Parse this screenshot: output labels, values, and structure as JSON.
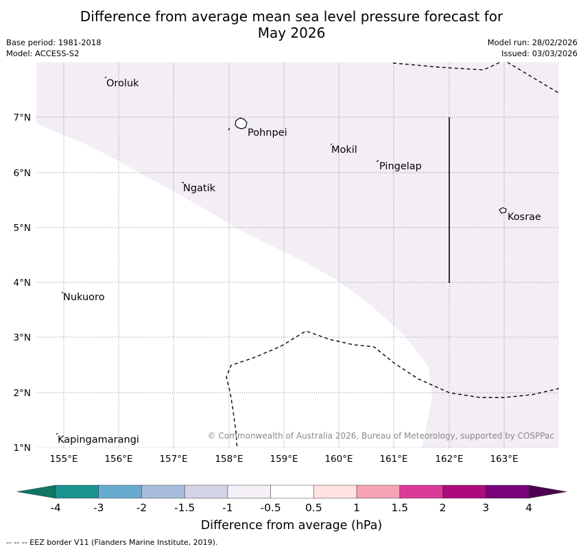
{
  "title": {
    "line1": "Difference from average mean sea level pressure forecast for",
    "line2": "May 2026"
  },
  "meta": {
    "base_period": "Base period: 1981-2018",
    "model": "Model: ACCESS-S2",
    "model_run": "Model run: 28/02/2026",
    "issued": "Issued: 03/03/2026"
  },
  "map": {
    "lon_labels": [
      "155°E",
      "156°E",
      "157°E",
      "158°E",
      "159°E",
      "160°E",
      "161°E",
      "162°E",
      "163°E"
    ],
    "lat_labels": [
      "7°N",
      "6°N",
      "5°N",
      "4°N",
      "3°N",
      "2°N",
      "1°N"
    ],
    "places": [
      "Oroluk",
      "Pohnpei",
      "Mokil",
      "Pingelap",
      "Ngatik",
      "Kosrae",
      "Nukuoro",
      "Kapingamarangi"
    ],
    "copyright": "© Commonwealth of Australia 2026, Bureau of Meteorology, supported by COSPPac",
    "shading_color": "#f3eef6"
  },
  "colorbar": {
    "tick_labels": [
      "-4",
      "-3",
      "-2",
      "-1.5",
      "-1",
      "-0.5",
      "0.5",
      "1",
      "1.5",
      "2",
      "3",
      "4"
    ],
    "colors": [
      "#1a948f",
      "#68abd0",
      "#a8bcdb",
      "#d3d3e6",
      "#f5eff8",
      "#ffffff",
      "#ffe3e3",
      "#f7a3b6",
      "#db3998",
      "#ad0a7d",
      "#790278"
    ],
    "low_extend_color": "#0f7565",
    "high_extend_color": "#4d0050",
    "label": "Difference from average (hPa)"
  },
  "footer": "--  --  -- EEZ border V11 (Flanders Marine Institute, 2019)."
}
